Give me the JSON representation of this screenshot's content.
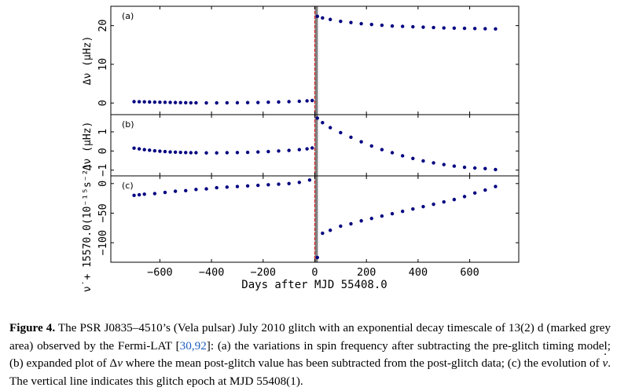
{
  "chart_data": [
    {
      "type": "scatter",
      "panel_label": "(a)",
      "ylabel": "Δν (μHz)",
      "ylim": [
        -3,
        25
      ],
      "yticks": [
        0,
        10,
        20
      ],
      "xlim": [
        -790,
        790
      ],
      "x": [
        -700,
        -680,
        -660,
        -640,
        -620,
        -600,
        -580,
        -560,
        -540,
        -520,
        -500,
        -480,
        -460,
        -420,
        -380,
        -340,
        -300,
        -260,
        -220,
        -180,
        -140,
        -100,
        -60,
        -30,
        -10,
        10,
        30,
        60,
        100,
        140,
        180,
        220,
        260,
        300,
        340,
        380,
        420,
        460,
        500,
        540,
        580,
        620,
        660,
        700
      ],
      "y": [
        0.35,
        0.33,
        0.3,
        0.27,
        0.24,
        0.21,
        0.18,
        0.15,
        0.12,
        0.1,
        0.08,
        0.06,
        0.05,
        0.04,
        0.04,
        0.05,
        0.07,
        0.1,
        0.14,
        0.2,
        0.27,
        0.35,
        0.45,
        0.55,
        0.65,
        22.4,
        22.0,
        21.6,
        21.1,
        20.8,
        20.5,
        20.3,
        20.1,
        19.9,
        19.8,
        19.7,
        19.6,
        19.5,
        19.4,
        19.35,
        19.3,
        19.25,
        19.2,
        19.15
      ]
    },
    {
      "type": "scatter",
      "panel_label": "(b)",
      "ylabel": "Δν (μHz)",
      "ylim": [
        -1.3,
        1.9
      ],
      "yticks": [
        -1,
        0,
        1
      ],
      "xlim": [
        -790,
        790
      ],
      "x": [
        -700,
        -680,
        -660,
        -640,
        -620,
        -600,
        -580,
        -560,
        -540,
        -520,
        -500,
        -480,
        -460,
        -420,
        -380,
        -340,
        -300,
        -260,
        -220,
        -180,
        -140,
        -100,
        -60,
        -30,
        -10,
        10,
        30,
        60,
        100,
        140,
        180,
        220,
        260,
        300,
        340,
        380,
        420,
        460,
        500,
        540,
        580,
        620,
        660,
        700
      ],
      "y": [
        0.15,
        0.11,
        0.07,
        0.04,
        0.01,
        -0.01,
        -0.03,
        -0.05,
        -0.06,
        -0.07,
        -0.08,
        -0.09,
        -0.09,
        -0.1,
        -0.1,
        -0.09,
        -0.08,
        -0.07,
        -0.05,
        -0.03,
        0.0,
        0.03,
        0.07,
        0.11,
        0.16,
        1.72,
        1.48,
        1.22,
        0.96,
        0.72,
        0.48,
        0.26,
        0.07,
        -0.09,
        -0.25,
        -0.39,
        -0.52,
        -0.62,
        -0.71,
        -0.79,
        -0.85,
        -0.89,
        -0.92,
        -0.97
      ]
    },
    {
      "type": "scatter",
      "panel_label": "(c)",
      "ylabel": "ν̇ + 15570.0(10⁻¹⁵s⁻²)",
      "ylim": [
        -133,
        13
      ],
      "yticks": [
        -100,
        -50,
        0
      ],
      "xlim": [
        -790,
        790
      ],
      "x": [
        -700,
        -680,
        -660,
        -620,
        -580,
        -540,
        -500,
        -460,
        -420,
        -380,
        -340,
        -300,
        -260,
        -220,
        -180,
        -140,
        -100,
        -60,
        -20,
        10,
        30,
        60,
        100,
        140,
        180,
        220,
        260,
        300,
        340,
        380,
        420,
        460,
        500,
        540,
        580,
        620,
        660,
        700
      ],
      "y": [
        -20,
        -19,
        -18,
        -17,
        -15,
        -13,
        -12,
        -10,
        -9,
        -7,
        -6,
        -5,
        -4,
        -3,
        -2,
        -1,
        0,
        2,
        6,
        -125,
        -84,
        -79,
        -72,
        -68,
        -63,
        -59,
        -55,
        -51,
        -47,
        -43,
        -39,
        -35,
        -31,
        -27,
        -22,
        -16,
        -11,
        -5
      ]
    }
  ],
  "shared_axis": {
    "xlabel": "Days after MJD 55408.0",
    "xticks": [
      -600,
      -400,
      -200,
      0,
      200,
      400,
      600
    ],
    "glitch_epoch_x": 0,
    "grey_region": [
      0,
      12
    ],
    "colors": {
      "points": "#000080",
      "glitch_line": "#d62728",
      "grey_area": "#7f7f7f",
      "axes": "#000000"
    }
  },
  "caption": {
    "label": "Figure 4.",
    "part1": " The PSR J0835–4510’s (Vela pulsar) July 2010 glitch with an exponential decay timescale of 13(2) d (marked grey area) observed by the Fermi-LAT [",
    "cite": "30,92",
    "part2": "]: (a) the variations in spin frequency after subtracting the pre-glitch timing model; (b) expanded plot of Δ",
    "nu": "ν",
    "part3": " where the mean post-glitch value has been subtracted from the post-glitch data; (c) the evolution of ",
    "part4": ". The vertical line indicates this glitch epoch at MJD 55408(1)."
  }
}
